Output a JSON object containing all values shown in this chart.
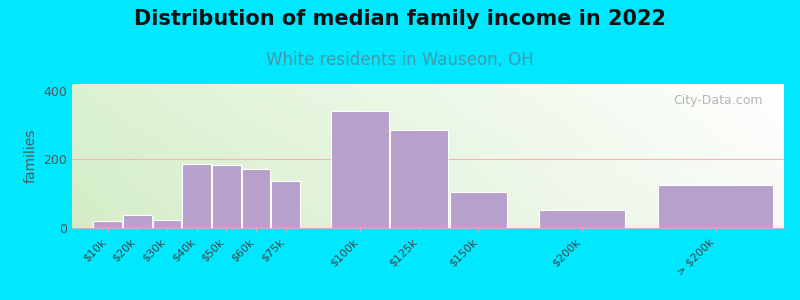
{
  "title": "Distribution of median family income in 2022",
  "subtitle": "White residents in Wauseon, OH",
  "ylabel": "families",
  "categories": [
    "$10k",
    "$20k",
    "$30k",
    "$40k",
    "$50k",
    "$60k",
    "$75k",
    "$100k",
    "$125k",
    "$150k",
    "$200k",
    "> $200k"
  ],
  "values": [
    20,
    38,
    22,
    188,
    183,
    173,
    138,
    340,
    285,
    105,
    52,
    125
  ],
  "bar_color": "#b8a0cc",
  "bar_edge_color": "#ffffff",
  "ylim": [
    0,
    420
  ],
  "yticks": [
    0,
    200,
    400
  ],
  "background_outer": "#00e8ff",
  "title_fontsize": 15,
  "subtitle_fontsize": 12,
  "subtitle_color": "#4499aa",
  "ylabel_color": "#555555",
  "watermark": "City-Data.com",
  "grid_color": "#ffb0b0",
  "bar_positions": [
    0,
    1,
    2,
    3,
    4,
    5,
    6,
    8,
    10,
    12,
    15,
    19
  ],
  "bar_widths": [
    1,
    1,
    1,
    1,
    1,
    1,
    1,
    2,
    2,
    2,
    3,
    4
  ]
}
